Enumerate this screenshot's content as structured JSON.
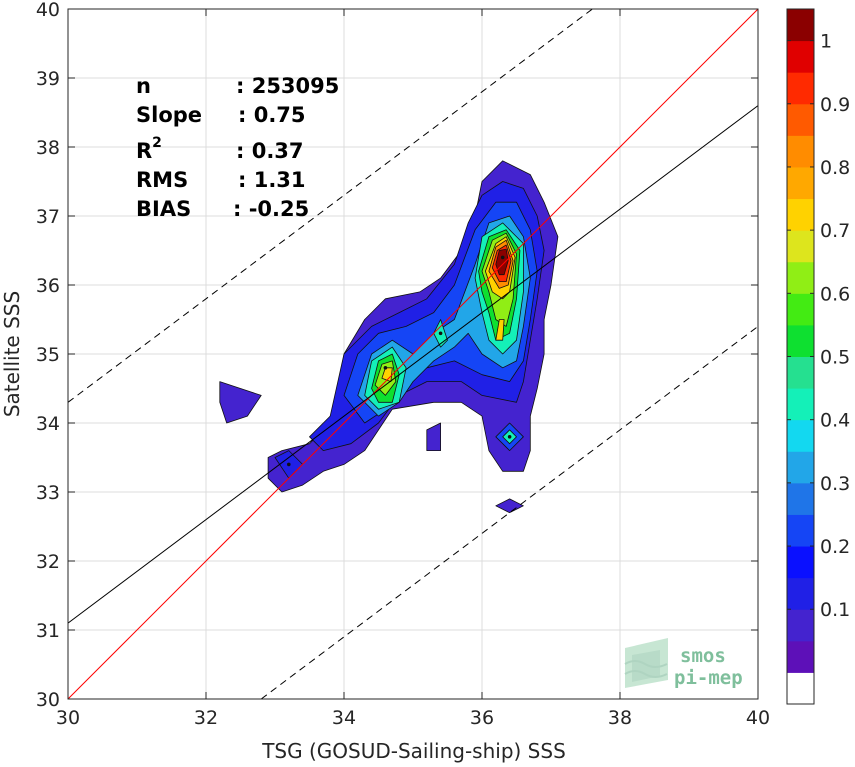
{
  "chart_data": {
    "type": "heatmap",
    "subtype": "filled-contour density scatter",
    "title": "",
    "xlabel": "TSG (GOSUD-Sailing-ship) SSS",
    "ylabel": "Satellite SSS",
    "xlim": [
      30,
      40
    ],
    "ylim": [
      30,
      40
    ],
    "x_ticks": [
      "30",
      "32",
      "34",
      "36",
      "38",
      "40"
    ],
    "y_ticks": [
      "30",
      "31",
      "32",
      "33",
      "34",
      "35",
      "36",
      "37",
      "38",
      "39",
      "40"
    ],
    "grid": true,
    "stats": [
      {
        "label": "n",
        "value": ": 253095"
      },
      {
        "label": "Slope",
        "value": ": 0.75"
      },
      {
        "label": "R",
        "sup": "2",
        "value": ": 0.37"
      },
      {
        "label": "RMS",
        "value": ": 1.31"
      },
      {
        "label": "BIAS",
        "value": ": -0.25"
      }
    ],
    "lines": [
      {
        "type": "identity",
        "x": [
          30,
          40
        ],
        "y": [
          30,
          40
        ],
        "color": "#ff0000",
        "style": "solid"
      },
      {
        "type": "regression",
        "x": [
          30,
          40
        ],
        "y": [
          31.1,
          38.6
        ],
        "color": "#000000",
        "style": "solid"
      },
      {
        "type": "upper-bound",
        "x": [
          30,
          37.6
        ],
        "y": [
          34.3,
          40
        ],
        "color": "#000000",
        "style": "dashed"
      },
      {
        "type": "lower-bound",
        "x": [
          32.8,
          40
        ],
        "y": [
          30,
          35.4
        ],
        "color": "#000000",
        "style": "dashed"
      }
    ],
    "density_peaks": [
      {
        "x": 36.3,
        "y": 36.4,
        "level": 1.0
      },
      {
        "x": 34.6,
        "y": 34.8,
        "level": 0.75
      },
      {
        "x": 35.4,
        "y": 35.3,
        "level": 0.5
      },
      {
        "x": 36.4,
        "y": 33.8,
        "level": 0.4
      },
      {
        "x": 33.2,
        "y": 33.4,
        "level": 0.2
      }
    ],
    "density_regions": [
      {
        "level": 0.05,
        "poly": [
          [
            33.1,
            33.6
          ],
          [
            33.5,
            33.7
          ],
          [
            33.7,
            33.9
          ],
          [
            33.9,
            34.3
          ],
          [
            34.0,
            35.0
          ],
          [
            34.3,
            35.5
          ],
          [
            34.6,
            35.8
          ],
          [
            35.1,
            35.9
          ],
          [
            35.4,
            36.1
          ],
          [
            35.7,
            36.5
          ],
          [
            35.9,
            37.0
          ],
          [
            36.0,
            37.5
          ],
          [
            36.3,
            37.8
          ],
          [
            36.7,
            37.6
          ],
          [
            36.9,
            37.2
          ],
          [
            37.1,
            36.7
          ],
          [
            37.0,
            36.0
          ],
          [
            36.9,
            35.5
          ],
          [
            36.9,
            35.0
          ],
          [
            36.8,
            34.5
          ],
          [
            36.7,
            34.1
          ],
          [
            36.7,
            33.6
          ],
          [
            36.6,
            33.3
          ],
          [
            36.3,
            33.3
          ],
          [
            36.1,
            33.6
          ],
          [
            36.0,
            34.1
          ],
          [
            35.7,
            34.3
          ],
          [
            35.3,
            34.3
          ],
          [
            34.7,
            34.2
          ],
          [
            34.3,
            33.6
          ],
          [
            34.0,
            33.4
          ],
          [
            33.7,
            33.3
          ],
          [
            33.4,
            33.1
          ],
          [
            33.1,
            33.0
          ],
          [
            32.9,
            33.2
          ],
          [
            32.9,
            33.5
          ]
        ]
      },
      {
        "level": 0.05,
        "poly": [
          [
            32.2,
            34.6
          ],
          [
            32.5,
            34.5
          ],
          [
            32.8,
            34.4
          ],
          [
            32.6,
            34.1
          ],
          [
            32.3,
            34.0
          ],
          [
            32.2,
            34.3
          ]
        ]
      },
      {
        "level": 0.05,
        "poly": [
          [
            36.2,
            32.8
          ],
          [
            36.4,
            32.9
          ],
          [
            36.6,
            32.8
          ],
          [
            36.4,
            32.7
          ]
        ]
      },
      {
        "level": 0.05,
        "poly": [
          [
            35.2,
            33.9
          ],
          [
            35.4,
            34.0
          ],
          [
            35.4,
            33.6
          ],
          [
            35.2,
            33.6
          ]
        ]
      },
      {
        "level": 0.1,
        "poly": [
          [
            33.5,
            33.8
          ],
          [
            33.8,
            34.1
          ],
          [
            34.0,
            35.0
          ],
          [
            34.4,
            35.4
          ],
          [
            34.8,
            35.6
          ],
          [
            35.2,
            35.8
          ],
          [
            35.6,
            36.3
          ],
          [
            35.8,
            36.9
          ],
          [
            36.0,
            37.3
          ],
          [
            36.3,
            37.5
          ],
          [
            36.6,
            37.4
          ],
          [
            36.8,
            37.0
          ],
          [
            36.9,
            36.5
          ],
          [
            36.8,
            35.8
          ],
          [
            36.7,
            35.2
          ],
          [
            36.6,
            34.6
          ],
          [
            36.5,
            34.3
          ],
          [
            36.0,
            34.4
          ],
          [
            35.7,
            34.6
          ],
          [
            35.2,
            34.6
          ],
          [
            34.8,
            34.4
          ],
          [
            34.5,
            34.0
          ],
          [
            34.1,
            33.7
          ],
          [
            33.7,
            33.6
          ]
        ]
      },
      {
        "level": 0.1,
        "poly": [
          [
            33.0,
            33.5
          ],
          [
            33.2,
            33.6
          ],
          [
            33.4,
            33.4
          ],
          [
            33.2,
            33.2
          ]
        ]
      },
      {
        "level": 0.2,
        "poly": [
          [
            34.0,
            34.4
          ],
          [
            34.2,
            35.0
          ],
          [
            34.5,
            35.3
          ],
          [
            34.9,
            35.4
          ],
          [
            35.3,
            35.6
          ],
          [
            35.6,
            36.0
          ],
          [
            35.9,
            36.8
          ],
          [
            36.2,
            37.2
          ],
          [
            36.5,
            37.2
          ],
          [
            36.7,
            36.8
          ],
          [
            36.8,
            36.2
          ],
          [
            36.7,
            35.5
          ],
          [
            36.6,
            34.9
          ],
          [
            36.4,
            34.6
          ],
          [
            36.0,
            34.7
          ],
          [
            35.6,
            34.9
          ],
          [
            35.2,
            34.8
          ],
          [
            34.9,
            34.6
          ],
          [
            34.6,
            34.2
          ],
          [
            34.3,
            34.0
          ]
        ]
      },
      {
        "level": 0.2,
        "poly": [
          [
            36.2,
            33.8
          ],
          [
            36.4,
            34.0
          ],
          [
            36.6,
            33.8
          ],
          [
            36.4,
            33.6
          ]
        ]
      },
      {
        "level": 0.3,
        "poly": [
          [
            34.2,
            34.4
          ],
          [
            34.4,
            35.0
          ],
          [
            34.7,
            35.2
          ],
          [
            35.0,
            35.0
          ],
          [
            35.3,
            35.3
          ],
          [
            35.6,
            35.5
          ],
          [
            35.9,
            36.3
          ],
          [
            36.1,
            36.9
          ],
          [
            36.4,
            37.0
          ],
          [
            36.6,
            36.7
          ],
          [
            36.7,
            36.1
          ],
          [
            36.6,
            35.4
          ],
          [
            36.5,
            34.9
          ],
          [
            36.3,
            34.8
          ],
          [
            36.0,
            35.0
          ],
          [
            35.8,
            35.3
          ],
          [
            35.6,
            35.1
          ],
          [
            35.3,
            34.9
          ],
          [
            35.0,
            34.6
          ],
          [
            34.8,
            34.3
          ],
          [
            34.5,
            34.1
          ]
        ]
      },
      {
        "level": 0.4,
        "poly": [
          [
            34.3,
            34.4
          ],
          [
            34.4,
            34.9
          ],
          [
            34.7,
            35.1
          ],
          [
            34.9,
            34.8
          ],
          [
            34.8,
            34.3
          ],
          [
            34.5,
            34.2
          ]
        ]
      },
      {
        "level": 0.4,
        "poly": [
          [
            35.9,
            36.1
          ],
          [
            36.0,
            36.7
          ],
          [
            36.3,
            36.9
          ],
          [
            36.6,
            36.6
          ],
          [
            36.6,
            35.9
          ],
          [
            36.5,
            35.2
          ],
          [
            36.3,
            35.0
          ],
          [
            36.1,
            35.2
          ],
          [
            36.0,
            35.6
          ]
        ]
      },
      {
        "level": 0.4,
        "poly": [
          [
            35.3,
            35.3
          ],
          [
            35.4,
            35.5
          ],
          [
            35.5,
            35.2
          ],
          [
            35.4,
            35.1
          ]
        ]
      },
      {
        "level": 0.4,
        "poly": [
          [
            36.3,
            33.8
          ],
          [
            36.4,
            33.9
          ],
          [
            36.5,
            33.8
          ],
          [
            36.4,
            33.7
          ]
        ]
      },
      {
        "level": 0.5,
        "poly": [
          [
            34.4,
            34.5
          ],
          [
            34.5,
            34.9
          ],
          [
            34.7,
            35.0
          ],
          [
            34.8,
            34.7
          ],
          [
            34.7,
            34.3
          ],
          [
            34.5,
            34.3
          ]
        ]
      },
      {
        "level": 0.5,
        "poly": [
          [
            35.95,
            36.2
          ],
          [
            36.1,
            36.7
          ],
          [
            36.35,
            36.8
          ],
          [
            36.55,
            36.5
          ],
          [
            36.5,
            35.8
          ],
          [
            36.4,
            35.3
          ],
          [
            36.2,
            35.2
          ],
          [
            36.1,
            35.6
          ],
          [
            36.0,
            35.9
          ]
        ]
      },
      {
        "level": 0.6,
        "poly": [
          [
            34.45,
            34.55
          ],
          [
            34.55,
            34.85
          ],
          [
            34.7,
            34.9
          ],
          [
            34.75,
            34.6
          ],
          [
            34.6,
            34.4
          ]
        ]
      },
      {
        "level": 0.6,
        "poly": [
          [
            36.0,
            36.2
          ],
          [
            36.15,
            36.65
          ],
          [
            36.35,
            36.75
          ],
          [
            36.5,
            36.45
          ],
          [
            36.45,
            35.8
          ],
          [
            36.35,
            35.4
          ],
          [
            36.2,
            35.5
          ],
          [
            36.1,
            35.9
          ]
        ]
      },
      {
        "level": 0.7,
        "poly": [
          [
            34.55,
            34.65
          ],
          [
            34.6,
            34.8
          ],
          [
            34.7,
            34.8
          ],
          [
            34.68,
            34.6
          ]
        ]
      },
      {
        "level": 0.7,
        "poly": [
          [
            36.05,
            36.2
          ],
          [
            36.2,
            36.6
          ],
          [
            36.35,
            36.7
          ],
          [
            36.48,
            36.4
          ],
          [
            36.4,
            35.9
          ],
          [
            36.3,
            35.8
          ],
          [
            36.15,
            35.9
          ]
        ]
      },
      {
        "level": 0.7,
        "poly": [
          [
            36.2,
            35.2
          ],
          [
            36.25,
            35.5
          ],
          [
            36.32,
            35.5
          ],
          [
            36.3,
            35.2
          ]
        ]
      },
      {
        "level": 0.8,
        "poly": [
          [
            36.1,
            36.2
          ],
          [
            36.2,
            36.55
          ],
          [
            36.35,
            36.65
          ],
          [
            36.45,
            36.35
          ],
          [
            36.38,
            36.0
          ],
          [
            36.25,
            35.95
          ]
        ]
      },
      {
        "level": 0.9,
        "poly": [
          [
            36.15,
            36.25
          ],
          [
            36.22,
            36.5
          ],
          [
            36.35,
            36.58
          ],
          [
            36.42,
            36.35
          ],
          [
            36.35,
            36.05
          ],
          [
            36.25,
            36.05
          ]
        ]
      },
      {
        "level": 1.0,
        "poly": [
          [
            36.2,
            36.3
          ],
          [
            36.25,
            36.5
          ],
          [
            36.35,
            36.52
          ],
          [
            36.38,
            36.35
          ],
          [
            36.32,
            36.15
          ],
          [
            36.25,
            36.15
          ]
        ]
      }
    ],
    "colorbar": {
      "ticks": [
        "0.1",
        "0.2",
        "0.3",
        "0.4",
        "0.5",
        "0.6",
        "0.7",
        "0.8",
        "0.9",
        "1"
      ],
      "levels": [
        0.0,
        0.05,
        0.1,
        0.15,
        0.2,
        0.25,
        0.3,
        0.35,
        0.4,
        0.45,
        0.5,
        0.55,
        0.6,
        0.65,
        0.7,
        0.75,
        0.8,
        0.85,
        0.9,
        0.95,
        1.0
      ],
      "colors": [
        "#ffffff",
        "#5d10b8",
        "#4423cf",
        "#2020e6",
        "#0a10ff",
        "#1545f5",
        "#1f75e8",
        "#22a6e8",
        "#13d8f0",
        "#14f0b8",
        "#25e090",
        "#0ee030",
        "#43eb13",
        "#90ee15",
        "#dde51d",
        "#ffd200",
        "#ffa800",
        "#ff8c00",
        "#ff5a00",
        "#ff2a00",
        "#e00000",
        "#8b0000"
      ]
    }
  },
  "logo": {
    "line1": "smos",
    "line2": "pi-mep"
  }
}
